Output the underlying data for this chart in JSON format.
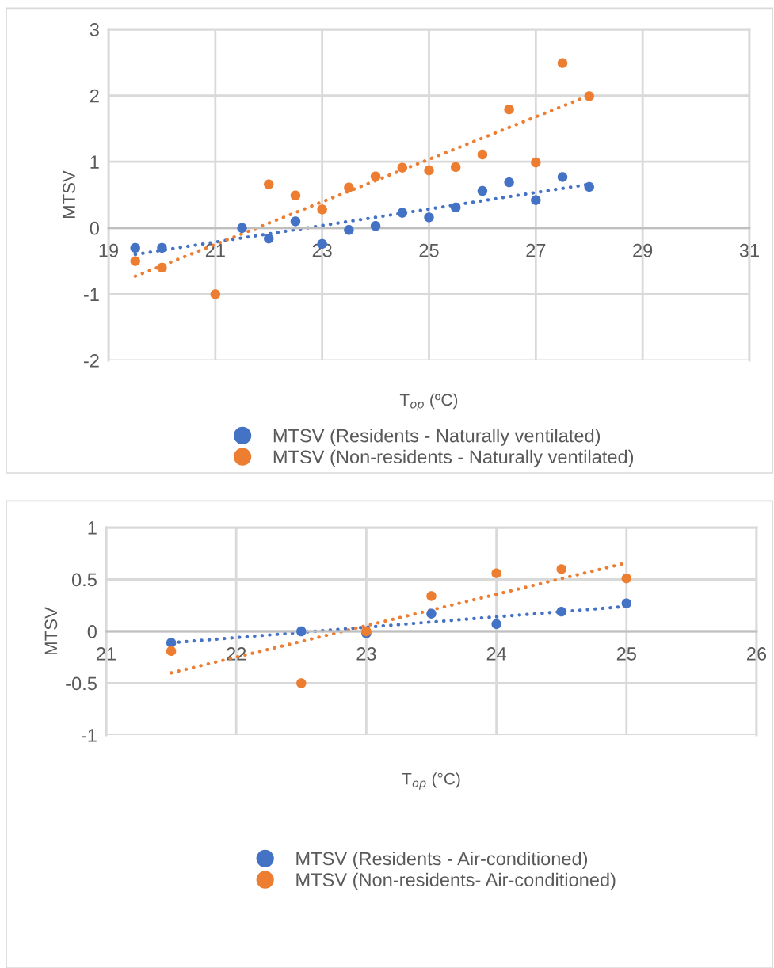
{
  "chart_data": [
    {
      "type": "scatter",
      "xlabel": "T$_{op}$ (ºC)",
      "ylabel": "MTSV",
      "xlim": [
        19,
        31
      ],
      "ylim": [
        -2,
        3
      ],
      "xticks": [
        19,
        21,
        23,
        25,
        27,
        29,
        31
      ],
      "yticks": [
        -2,
        -1,
        0,
        1,
        2,
        3
      ],
      "grid": true,
      "legend": "bottom",
      "marker": "circle",
      "series": [
        {
          "name": "MTSV (Residents - Naturally ventilated)",
          "color": "#4472c4",
          "x": [
            19.5,
            20,
            21.5,
            22,
            22.5,
            23,
            23.5,
            24,
            24.5,
            25,
            25.5,
            26,
            26.5,
            27,
            27.5,
            28
          ],
          "values": [
            -0.3,
            -0.3,
            0,
            -0.16,
            0.1,
            -0.24,
            -0.03,
            0.03,
            0.23,
            0.16,
            0.31,
            0.56,
            0.69,
            0.42,
            0.77,
            0.62
          ]
        },
        {
          "name": "MTSV (Non-residents - Naturally ventilated)",
          "color": "#ed7d31",
          "x": [
            19.5,
            20,
            21,
            22,
            22.5,
            23,
            23.5,
            24,
            24.5,
            25,
            25.5,
            26,
            26.5,
            27,
            27.5,
            28
          ],
          "values": [
            -0.5,
            -0.6,
            -1.0,
            0.66,
            0.49,
            0.28,
            0.61,
            0.78,
            0.91,
            0.87,
            0.92,
            1.11,
            1.79,
            0.99,
            2.49,
            1.99
          ]
        },
        {
          "type": "line",
          "line_style": "dotted",
          "marker": "none",
          "color": "#4472c4",
          "x": [
            19.5,
            28
          ],
          "values": [
            -0.4,
            0.66
          ]
        },
        {
          "type": "line",
          "line_style": "dotted",
          "marker": "none",
          "color": "#ed7d31",
          "x": [
            19.5,
            28
          ],
          "values": [
            -0.73,
            2.0
          ]
        }
      ]
    },
    {
      "type": "scatter",
      "xlabel": "T$_{op}$ (°C)",
      "ylabel": "MTSV",
      "xlim": [
        21,
        26
      ],
      "ylim": [
        -1,
        1
      ],
      "xticks": [
        21,
        22,
        23,
        24,
        25,
        26
      ],
      "yticks": [
        -1,
        -0.5,
        0,
        0.5,
        1
      ],
      "grid": true,
      "legend": "bottom",
      "marker": "circle",
      "series": [
        {
          "name": "MTSV (Residents - Air-conditioned)",
          "color": "#4472c4",
          "x": [
            21.5,
            22.5,
            23,
            23.5,
            24,
            24.5,
            25
          ],
          "values": [
            -0.11,
            0,
            -0.02,
            0.17,
            0.07,
            0.19,
            0.27
          ]
        },
        {
          "name": "MTSV (Non-residents- Air-conditioned)",
          "color": "#ed7d31",
          "x": [
            21.5,
            22.5,
            23,
            23.5,
            24,
            24.5,
            25
          ],
          "values": [
            -0.19,
            -0.5,
            0,
            0.34,
            0.56,
            0.6,
            0.51
          ]
        },
        {
          "type": "line",
          "line_style": "dotted",
          "marker": "none",
          "color": "#4472c4",
          "x": [
            21.5,
            25
          ],
          "values": [
            -0.11,
            0.24
          ]
        },
        {
          "type": "line",
          "line_style": "dotted",
          "marker": "none",
          "color": "#ed7d31",
          "x": [
            21.5,
            25
          ],
          "values": [
            -0.4,
            0.66
          ]
        }
      ]
    }
  ]
}
